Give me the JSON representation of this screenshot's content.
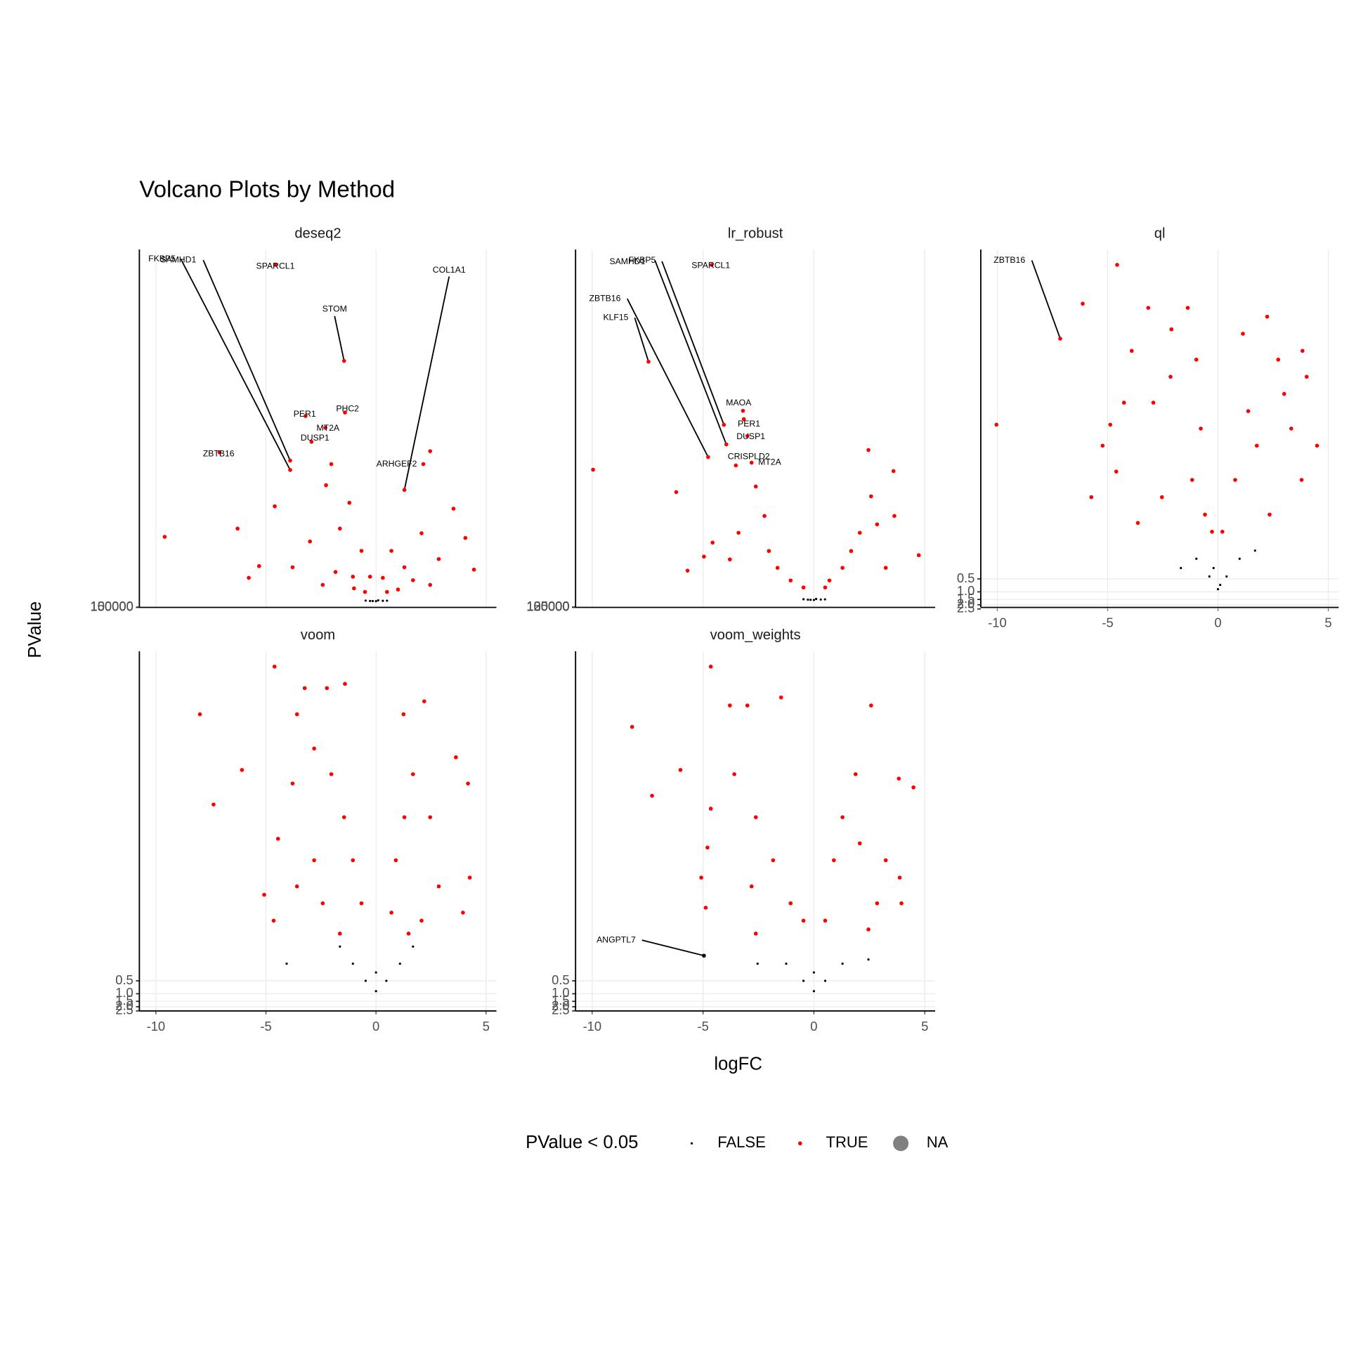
{
  "title": "Volcano Plots by Method",
  "x_label": "logFC",
  "y_label": "PValue",
  "legend": {
    "title": "PValue < 0.05",
    "entries": [
      {
        "name": "FALSE",
        "color": "#000000"
      },
      {
        "name": "TRUE",
        "color": "#ff0000"
      },
      {
        "name": "NA",
        "color": "#808080"
      }
    ]
  },
  "chart_data": [
    {
      "type": "scatter",
      "title": "deseq2",
      "y_trans": "-log10",
      "grid": true,
      "xtick_labels": false,
      "xlim": [
        -10.75,
        5.47
      ],
      "ylim": [
        160000,
        1e-300
      ],
      "xticks": [
        -10,
        -5,
        0,
        5
      ],
      "yticks": [
        100000,
        150000
      ],
      "series": [
        {
          "name": "FALSE",
          "color": "#000000",
          "x": [
            0,
            -0.27,
            0.31,
            -0.47,
            0.5,
            0.1,
            -0.15
          ],
          "values": [
            0.8,
            0.5,
            0.4,
            0.25,
            0.3,
            0.15,
            0.6
          ]
        },
        {
          "name": "TRUE",
          "color": "#ff0000",
          "x": [
            -9.6,
            -6.29,
            -5.78,
            -5.31,
            -2.03,
            -2.27,
            -4.6,
            -1.21,
            2.46,
            3.52,
            4.06,
            4.45,
            2.07,
            0.7,
            -0.66,
            -1.64,
            -3.0,
            -3.79,
            2.85,
            1.29,
            -0.27,
            0.31,
            -1.05,
            1.68,
            -1.84,
            2.46,
            -2.42,
            -0.5,
            0.5,
            1.0,
            -1.0
          ],
          "values": [
            1e-55,
            1e-62,
            1e-20,
            1e-30,
            1e-117,
            1e-99,
            1e-81,
            1e-84,
            1e-128,
            1e-79,
            1e-54,
            1e-27,
            1e-58,
            1e-43,
            1e-43,
            1e-62,
            1e-51,
            1e-29,
            1e-36,
            1e-29,
            1e-21,
            1e-20,
            1e-21,
            1e-18,
            1e-25,
            1e-14,
            1e-14,
            1e-08,
            1e-08,
            1e-10,
            1e-11
          ]
        }
      ],
      "labels": [
        {
          "text": "FKBP5",
          "x": -3.9,
          "y": 1e-112,
          "color": "#ff0000"
        },
        {
          "text": "SAMHD1",
          "x": -3.9,
          "y": 1e-120,
          "color": "#ff0000"
        },
        {
          "text": "SPARCL1",
          "x": -4.57,
          "y": 1e-287,
          "color": "#ff0000"
        },
        {
          "text": "COL1A1",
          "x": 1.29,
          "y": 1e-95,
          "color": "#ff0000"
        },
        {
          "text": "STOM",
          "x": -1.45,
          "y": 1e-205,
          "color": "#ff0000"
        },
        {
          "text": "PHC2",
          "x": -1.41,
          "y": 1e-161,
          "color": "#ff0000"
        },
        {
          "text": "PER1",
          "x": -3.2,
          "y": 1e-158,
          "color": "#ff0000"
        },
        {
          "text": "MT2A",
          "x": -2.3,
          "y": 1e-148,
          "color": "#ff0000"
        },
        {
          "text": "DUSP1",
          "x": -2.93,
          "y": 1e-136,
          "color": "#ff0000"
        },
        {
          "text": "ZBTB16",
          "x": -7.11,
          "y": 1e-127,
          "color": "#ff0000"
        },
        {
          "text": "ARHGEF2",
          "x": 2.15,
          "y": 1e-117,
          "color": "#ff0000"
        }
      ]
    },
    {
      "type": "scatter",
      "title": "lr_robust",
      "y_trans": "-log10",
      "grid": true,
      "xtick_labels": false,
      "xlim": [
        -10.75,
        5.47
      ],
      "ylim": [
        160000,
        1e-250
      ],
      "xticks": [
        -10,
        -5,
        0,
        5
      ],
      "yticks": [
        100000,
        125000,
        150000
      ],
      "series": [
        {
          "name": "FALSE",
          "color": "#000000",
          "x": [
            0,
            -0.27,
            0.31,
            -0.47,
            0.5,
            0.1,
            -0.15
          ],
          "values": [
            0.8,
            0.5,
            0.4,
            0.25,
            0.3,
            0.15,
            0.6
          ]
        },
        {
          "name": "TRUE",
          "color": "#ff0000",
          "x": [
            -9.96,
            -6.21,
            -5.7,
            2.46,
            3.59,
            2.58,
            4.73,
            -2.62,
            -2.23,
            -2.03,
            -1.64,
            -1.05,
            -4.57,
            -3.4,
            1.68,
            2.07,
            1.29,
            0.7,
            3.24,
            3.63,
            2.85,
            -3.79,
            -4.96,
            -0.47,
            0.51
          ],
          "values": [
            1e-93,
            1e-77,
            1e-21,
            1e-107,
            1e-92,
            1e-74,
            1e-32,
            1e-81,
            1e-60,
            1e-35,
            1e-23,
            1e-14,
            1e-41,
            1e-48,
            1e-35,
            1e-48,
            1e-23,
            1e-14,
            1e-23,
            1e-60,
            1e-54,
            1e-29,
            1e-31,
            1e-09,
            1e-09
          ]
        }
      ],
      "labels": [
        {
          "text": "SPARCL1",
          "x": -4.61,
          "y": 1e-239,
          "color": "#ff0000"
        },
        {
          "text": "FKBP5",
          "x": -4.06,
          "y": 1e-125,
          "color": "#ff0000"
        },
        {
          "text": "SAMHD1",
          "x": -3.95,
          "y": 1e-111,
          "color": "#ff0000"
        },
        {
          "text": "ZBTB16",
          "x": -4.77,
          "y": 1e-102,
          "color": "#ff0000"
        },
        {
          "text": "KLF15",
          "x": -7.46,
          "y": 1e-170,
          "color": "#ff0000"
        },
        {
          "text": "MAOA",
          "x": -3.2,
          "y": 1e-135,
          "color": "#ff0000"
        },
        {
          "text": "PER1",
          "x": -3.16,
          "y": 1e-129,
          "color": "#ff0000"
        },
        {
          "text": "DUSP1",
          "x": -3.0,
          "y": 1e-117,
          "color": "#ff0000"
        },
        {
          "text": "CRISPLD2",
          "x": -3.52,
          "y": 1e-96,
          "color": "#ff0000"
        },
        {
          "text": "MT2A",
          "x": -2.81,
          "y": 1e-98,
          "color": "#ff0000"
        }
      ]
    },
    {
      "type": "scatter",
      "title": "ql",
      "y_trans": "-log10",
      "grid": true,
      "xtick_labels": true,
      "xlim": [
        -10.75,
        5.47
      ],
      "ylim": [
        2.3,
        1.1e-08
      ],
      "xticks": [
        -10,
        -5,
        0,
        5
      ],
      "yticks": [
        0.5,
        {
          "value": 1,
          "label": "1.0"
        },
        1.5,
        {
          "value": 2,
          "label": "2.0"
        },
        2.5
      ],
      "series": [
        {
          "name": "FALSE",
          "color": "#000000",
          "x": [
            0,
            -0.39,
            0.39,
            -0.98,
            0.98,
            -1.68,
            1.68,
            0.1,
            -0.2
          ],
          "values": [
            0.87,
            0.44,
            0.44,
            0.17,
            0.17,
            0.28,
            0.11,
            0.69,
            0.28
          ]
        },
        {
          "name": "TRUE",
          "color": "#ff0000",
          "x": [
            -4.57,
            -6.13,
            -10.04,
            -5.74,
            -3.16,
            -1.37,
            -2.11,
            1.13,
            2.23,
            2.73,
            3.83,
            4.02,
            4.49,
            3.79,
            -3.91,
            -4.26,
            -4.88,
            -5.23,
            -4.61,
            -3.63,
            -2.93,
            -2.15,
            -0.98,
            -0.78,
            -1.17,
            -0.59,
            0.78,
            1.37,
            1.76,
            2.34,
            3.32,
            -2.54,
            0.2,
            -0.27,
            3.0
          ],
          "values": [
            2.5e-08,
            2e-07,
            0.00013,
            0.0063,
            2.5e-07,
            2.5e-07,
            7.9e-07,
            1e-06,
            4e-07,
            4e-06,
            2.5e-06,
            1e-05,
            0.0004,
            0.0025,
            2.5e-06,
            4e-05,
            0.00013,
            0.0004,
            0.0016,
            0.025,
            4e-05,
            1e-05,
            4e-06,
            0.00016,
            0.0025,
            0.016,
            0.0025,
            6.3e-05,
            0.0004,
            0.016,
            0.00016,
            0.0063,
            0.04,
            0.04,
            2.5e-05
          ]
        }
      ],
      "labels": [
        {
          "text": "ZBTB16",
          "x": -7.15,
          "y": 1.3e-06,
          "color": "#ff0000"
        }
      ]
    },
    {
      "type": "scatter",
      "title": "voom",
      "y_trans": "-log10",
      "grid": true,
      "xtick_labels": true,
      "xlim": [
        -10.75,
        5.47
      ],
      "ylim": [
        2.5,
        1.1e-08
      ],
      "xticks": [
        -10,
        -5,
        0,
        5
      ],
      "yticks": [
        0.5,
        {
          "value": 1,
          "label": "1.0"
        },
        1.5,
        {
          "value": 2,
          "label": "2.0"
        },
        2.5
      ],
      "series": [
        {
          "name": "FALSE",
          "color": "#000000",
          "x": [
            0,
            -0.47,
            0.47,
            -1.05,
            1.09,
            -4.06,
            -1.64,
            1.68,
            0
          ],
          "values": [
            0.87,
            0.5,
            0.5,
            0.2,
            0.2,
            0.2,
            0.08,
            0.08,
            0.32
          ]
        },
        {
          "name": "TRUE",
          "color": "#ff0000",
          "x": [
            -4.61,
            -8.0,
            -6.09,
            -7.38,
            -3.24,
            -2.23,
            -1.41,
            1.25,
            2.19,
            3.63,
            4.18,
            4.26,
            3.95,
            -4.65,
            -5.08,
            -4.45,
            -3.79,
            -3.59,
            -2.81,
            -2.03,
            -1.45,
            -1.05,
            -0.66,
            -2.81,
            -2.42,
            0.9,
            1.29,
            1.68,
            2.46,
            0.7,
            2.85,
            2.07,
            -3.59,
            -1.64,
            1.48
          ],
          "values": [
            2.5e-08,
            3.2e-07,
            6.3e-06,
            4e-05,
            7.9e-08,
            7.9e-08,
            6.3e-08,
            3.2e-07,
            1.6e-07,
            3.2e-06,
            1.3e-05,
            0.002,
            0.013,
            0.02,
            0.005,
            0.00025,
            1.3e-05,
            3.2e-07,
            2e-06,
            7.9e-06,
            7.9e-05,
            0.00079,
            0.0079,
            0.00079,
            0.0079,
            0.00079,
            7.9e-05,
            7.9e-06,
            7.9e-05,
            0.013,
            0.0032,
            0.02,
            0.0032,
            0.04,
            0.04
          ]
        }
      ],
      "labels": []
    },
    {
      "type": "scatter",
      "title": "voom_weights",
      "y_trans": "-log10",
      "grid": true,
      "xtick_labels": true,
      "xlim": [
        -10.75,
        5.47
      ],
      "ylim": [
        2.5,
        1.1e-08
      ],
      "xticks": [
        -10,
        -5,
        0,
        5
      ],
      "yticks": [
        0.5,
        {
          "value": 1,
          "label": "1.0"
        },
        1.5,
        {
          "value": 2,
          "label": "2.0"
        },
        2.5
      ],
      "series": [
        {
          "name": "FALSE",
          "color": "#000000",
          "x": [
            0,
            -0.47,
            0.51,
            -1.25,
            1.29,
            -2.54,
            2.46,
            0
          ],
          "values": [
            0.87,
            0.5,
            0.5,
            0.2,
            0.2,
            0.2,
            0.16,
            0.32
          ]
        },
        {
          "name": "TRUE",
          "color": "#ff0000",
          "x": [
            -4.65,
            -8.2,
            -6.02,
            -7.3,
            -3.79,
            -3.0,
            -1.48,
            2.58,
            3.83,
            4.49,
            3.87,
            3.95,
            -4.88,
            -5.08,
            -4.8,
            -4.65,
            -3.59,
            -2.62,
            -1.84,
            -1.05,
            -2.81,
            0.9,
            1.29,
            1.88,
            2.07,
            2.85,
            3.24,
            0.51,
            -0.47,
            2.46,
            -2.62
          ],
          "values": [
            2.5e-08,
            6.3e-07,
            6.3e-06,
            2.5e-05,
            2e-07,
            2e-07,
            1.3e-07,
            2e-07,
            1e-05,
            1.6e-05,
            0.002,
            0.0079,
            0.01,
            0.002,
            0.0004,
            5e-05,
            7.9e-06,
            7.9e-05,
            0.00079,
            0.0079,
            0.0032,
            0.00079,
            7.9e-05,
            7.9e-06,
            0.00032,
            0.0079,
            0.00079,
            0.02,
            0.02,
            0.032,
            0.04
          ]
        }
      ],
      "labels": [
        {
          "text": "ANGPTL7",
          "x": -4.96,
          "y": 0.13,
          "color": "#000000"
        }
      ]
    }
  ]
}
